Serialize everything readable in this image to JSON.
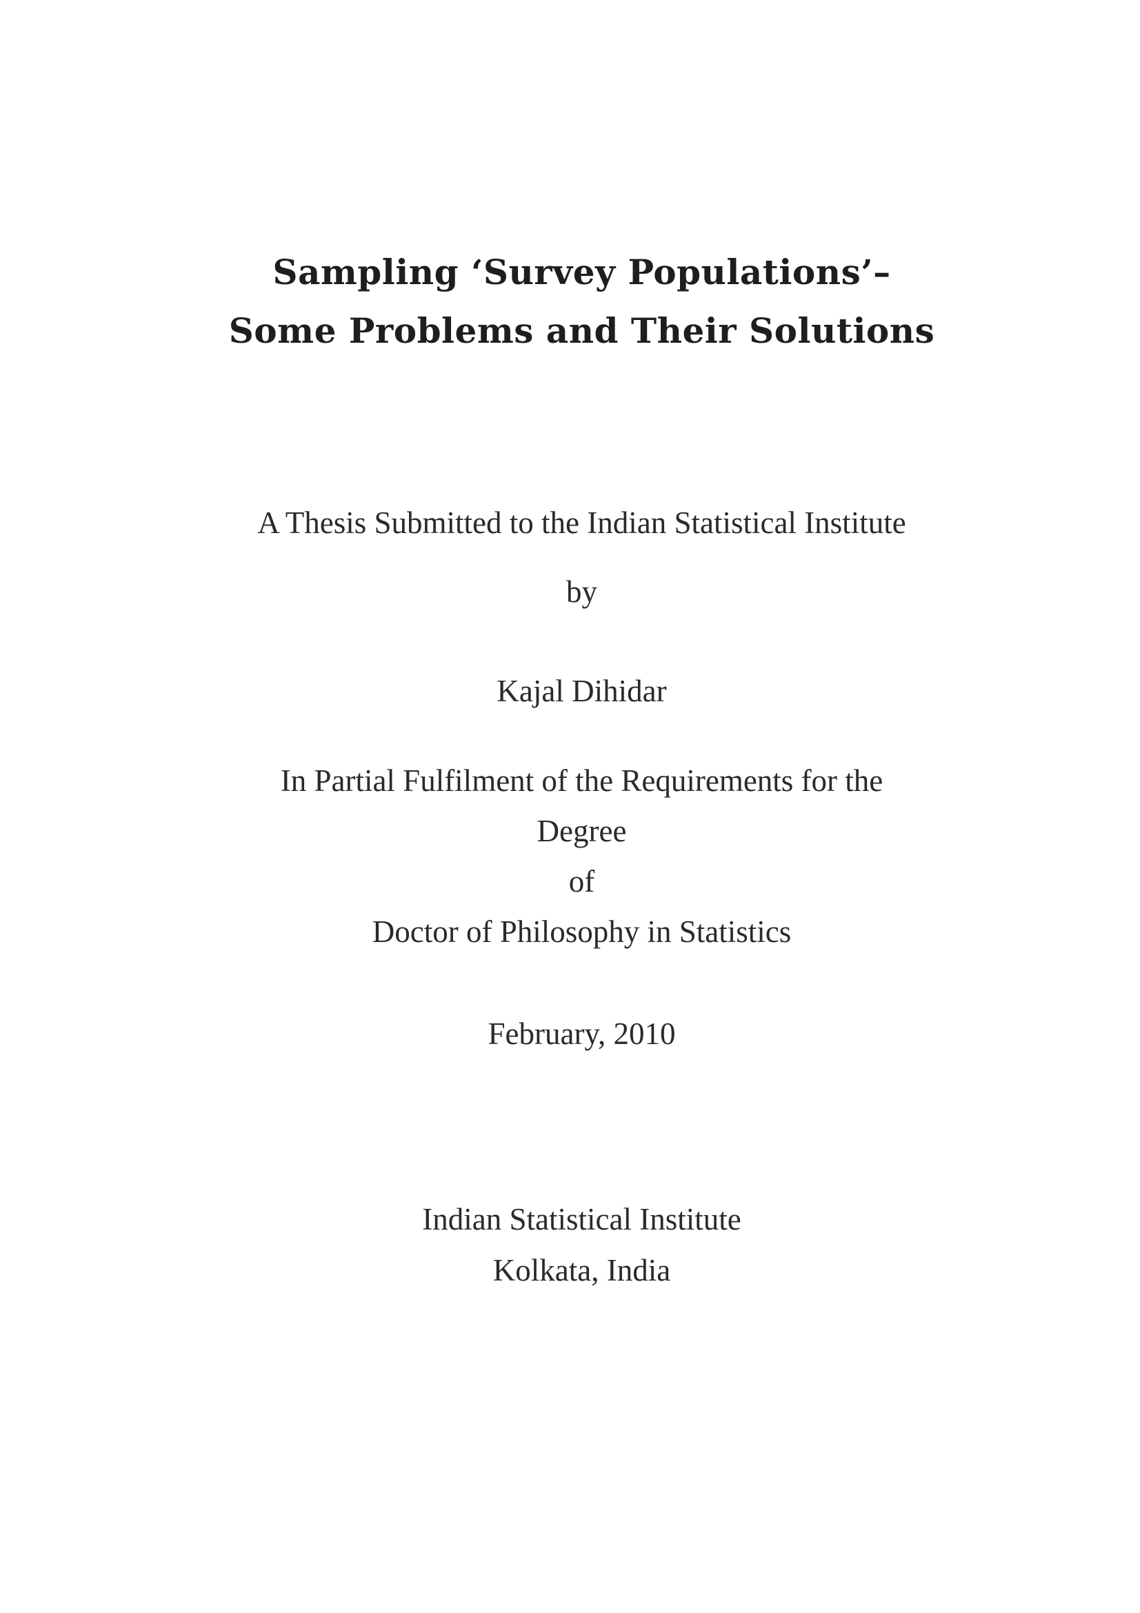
{
  "document": {
    "title_lines": [
      "Sampling ‘Survey Populations’–",
      "Some Problems and Their Solutions"
    ],
    "submission": "A Thesis Submitted to the Indian Statistical Institute",
    "by": "by",
    "author": "Kajal Dihidar",
    "fulfilment_lines": [
      "In Partial Fulfilment of the Requirements for the",
      "Degree",
      "of",
      "Doctor of Philosophy in Statistics"
    ],
    "date": "February, 2010",
    "institution_lines": [
      "Indian Statistical Institute",
      "Kolkata, India"
    ]
  }
}
